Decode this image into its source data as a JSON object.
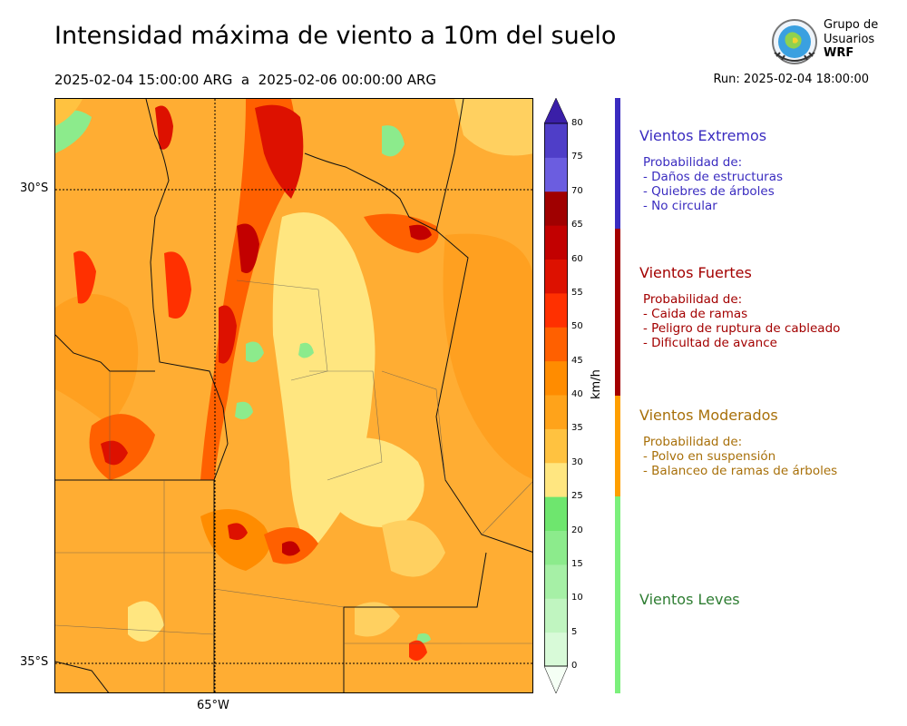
{
  "header": {
    "title": "Intensidad máxima de viento a 10m del suelo",
    "period": "2025-02-04 15:00:00 ARG  a  2025-02-06 00:00:00 ARG",
    "run": "Run: 2025-02-04 18:00:00"
  },
  "logo": {
    "line1": "Grupo de",
    "line2": "Usuarios",
    "line3": "WRF"
  },
  "map": {
    "lat_labels": [
      "30°S",
      "35°S"
    ],
    "lon_labels": [
      "65°W"
    ]
  },
  "colorbar": {
    "units": "km/h",
    "ticks": [
      "0",
      "5",
      "10",
      "15",
      "20",
      "25",
      "30",
      "35",
      "40",
      "45",
      "50",
      "55",
      "60",
      "65",
      "70",
      "75",
      "80"
    ],
    "colors": [
      "#f0fff0",
      "#d8fad8",
      "#c0f5c0",
      "#a6f0a6",
      "#8ceb8c",
      "#6ee66e",
      "#ffe680",
      "#ffc240",
      "#ffa31a",
      "#ff8c00",
      "#ff6000",
      "#ff3000",
      "#dd1100",
      "#c20000",
      "#a00000",
      "#6b5de0",
      "#4f3ec8",
      "#3a23b0"
    ],
    "extend_top_color": "#3a1fa8",
    "extend_bottom_color": "#f5fff5"
  },
  "categories": [
    {
      "head": "Vientos Extremos",
      "color": "#3a2cc0",
      "bar": "#3a2cc0",
      "lines": [
        "Probabilidad de:",
        "- Daños de estructuras",
        "- Quiebres de árboles",
        "- No circular"
      ]
    },
    {
      "head": "Vientos Fuertes",
      "color": "#a30000",
      "bar": "#a30000",
      "lines": [
        "Probabilidad de:",
        "- Caida de ramas",
        "- Peligro de ruptura de cableado",
        "- Dificultad de avance"
      ]
    },
    {
      "head": "Vientos Moderados",
      "color": "#a8700a",
      "bar": "#ff9f00",
      "lines": [
        "Probabilidad de:",
        "- Polvo en suspensión",
        "- Balanceo de ramas de árboles"
      ]
    },
    {
      "head": "Vientos Leves",
      "color": "#2e7d32",
      "bar": "#7cf07c",
      "lines": []
    }
  ]
}
